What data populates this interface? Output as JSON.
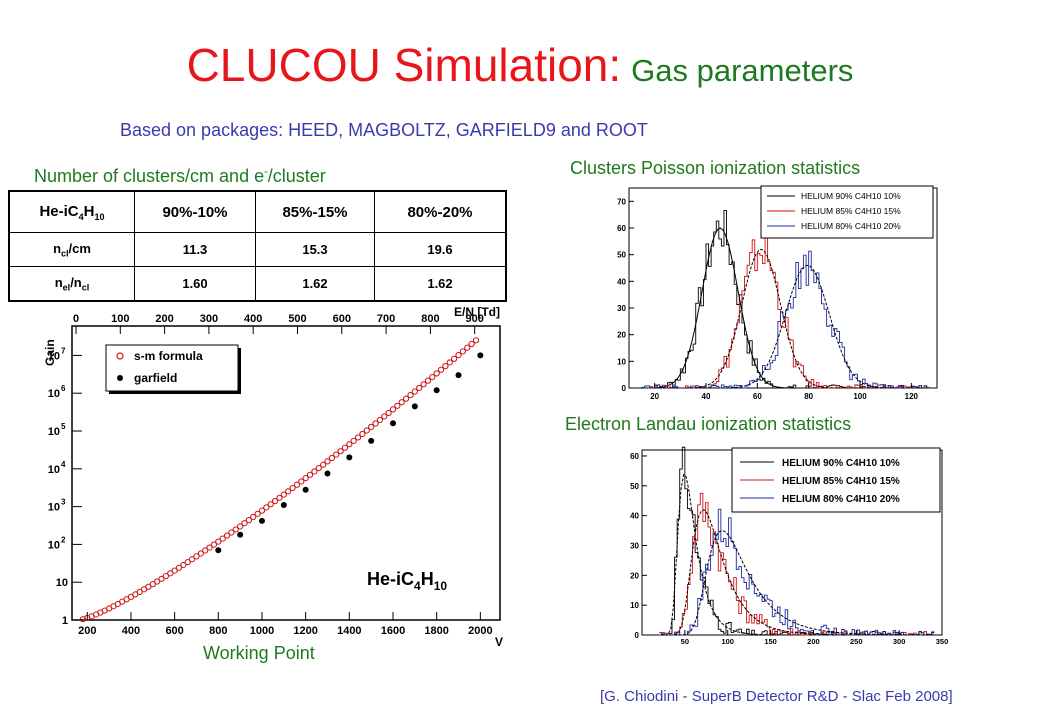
{
  "title": {
    "main": "CLUCOU Simulation:",
    "sub": "Gas parameters"
  },
  "subtitle": "Based on packages: HEED, MAGBOLTZ, GARFIELD9 and ROOT",
  "table_caption": {
    "text": "Number of clusters/cm and e",
    "sup": "-",
    "rest": "/cluster"
  },
  "table": {
    "header": {
      "gas_base": "He-iC",
      "sub1": "4",
      "h": "H",
      "sub2": "10",
      "cols": [
        "90%-10%",
        "85%-15%",
        "80%-20%"
      ]
    },
    "rows": [
      {
        "name": "n",
        "name_sub": "cl",
        "name_rest": "/cm",
        "values": [
          "11.3",
          "15.3",
          "19.6"
        ]
      },
      {
        "name": "n",
        "name_sub": "el",
        "name_rest": "/n",
        "name_sub2": "cl",
        "values": [
          "1.60",
          "1.62",
          "1.62"
        ]
      }
    ]
  },
  "clusters_caption": "Clusters Poisson ionization statistics",
  "landau_caption": "Electron Landau ionization statistics",
  "working_point": "Working Point",
  "citation": "[G. Chiodini - SuperB Detector R&D - Slac Feb 2008]",
  "colors": {
    "title": "#e8161b",
    "green": "#1f7a1f",
    "blue_text": "#3a3ab0",
    "red_series": "#d01010",
    "blue_series": "#1a2aa0"
  },
  "chart_data": [
    {
      "type": "scatter",
      "ylabel": "Gain",
      "xlabel": "V",
      "top_axis_label": "E/N [Td]",
      "log_y": true,
      "x_ticks": [
        "200",
        "400",
        "600",
        "800",
        "1000",
        "1200",
        "1400",
        "1600",
        "1800",
        "2000"
      ],
      "top_ticks": [
        "0",
        "100",
        "200",
        "300",
        "400",
        "500",
        "600",
        "700",
        "800",
        "900"
      ],
      "y_ticks": [
        "1",
        "10",
        "10^2",
        "10^3",
        "10^4",
        "10^5",
        "10^6",
        "10^7"
      ],
      "xlim": [
        130,
        2090
      ],
      "ylim": [
        1,
        60000000
      ],
      "gas_label": {
        "base": "He-iC",
        "sub1": "4",
        "h": "H",
        "sub2": "10"
      },
      "legend": [
        "s-m formula",
        "garfield"
      ],
      "series": [
        {
          "name": "s-m formula",
          "x": [
            180,
            200,
            220,
            240,
            260,
            280,
            300,
            320,
            340,
            360,
            380,
            400,
            420,
            440,
            460,
            480,
            500,
            520,
            540,
            560,
            580,
            600,
            620,
            640,
            660,
            680,
            700,
            720,
            740,
            760,
            780,
            800,
            820,
            840,
            860,
            880,
            900,
            920,
            940,
            960,
            980,
            1000,
            1020,
            1040,
            1060,
            1080,
            1100,
            1120,
            1140,
            1160,
            1180,
            1200,
            1220,
            1240,
            1260,
            1280,
            1300,
            1320,
            1340,
            1360,
            1380,
            1400,
            1420,
            1440,
            1460,
            1480,
            1500,
            1520,
            1540,
            1560,
            1580,
            1600,
            1620,
            1640,
            1660,
            1680,
            1700,
            1720,
            1740,
            1760,
            1780,
            1800,
            1820,
            1840,
            1860,
            1880,
            1900,
            1920,
            1940,
            1960,
            1980
          ]
        },
        {
          "name": "garfield",
          "x": [
            800,
            900,
            1000,
            1100,
            1200,
            1300,
            1400,
            1500,
            1600,
            1700,
            1800,
            1900,
            2000
          ],
          "y": [
            70,
            180,
            420,
            1100,
            2800,
            7500,
            20000,
            55000,
            160000,
            450000,
            1200000,
            3000000,
            10000000
          ]
        }
      ]
    },
    {
      "type": "line",
      "xlim": [
        10,
        130
      ],
      "ylim": [
        0,
        75
      ],
      "x_ticks": [
        "20",
        "40",
        "60",
        "80",
        "100",
        "120"
      ],
      "y_ticks": [
        "0",
        "10",
        "20",
        "30",
        "40",
        "50",
        "60",
        "70"
      ],
      "legend": [
        "HELIUM 90% C4H10 10%",
        "HELIUM 85% C4H10 15%",
        "HELIUM 80% C4H10 20%"
      ],
      "series": [
        {
          "name": "HELIUM 90% C4H10 10%",
          "mean": 45,
          "sigma": 7,
          "peak": 60
        },
        {
          "name": "HELIUM 85% C4H10 15%",
          "mean": 61,
          "sigma": 7.5,
          "peak": 52
        },
        {
          "name": "HELIUM 80% C4H10 20%",
          "mean": 79,
          "sigma": 8.5,
          "peak": 46
        }
      ]
    },
    {
      "type": "line",
      "xlim": [
        0,
        350
      ],
      "ylim": [
        0,
        62
      ],
      "x_ticks": [
        "50",
        "100",
        "150",
        "200",
        "250",
        "300",
        "350"
      ],
      "y_ticks": [
        "0",
        "10",
        "20",
        "30",
        "40",
        "50",
        "60"
      ],
      "legend": [
        "HELIUM 90% C4H10 10%",
        "HELIUM 85% C4H10 15%",
        "HELIUM 80% C4H10 20%"
      ],
      "series": [
        {
          "name": "HELIUM 90% C4H10 10%",
          "mpv": 48,
          "width": 7,
          "peak": 54
        },
        {
          "name": "HELIUM 85% C4H10 15%",
          "mpv": 70,
          "width": 12,
          "peak": 42
        },
        {
          "name": "HELIUM 80% C4H10 20%",
          "mpv": 92,
          "width": 16,
          "peak": 35
        }
      ]
    }
  ]
}
